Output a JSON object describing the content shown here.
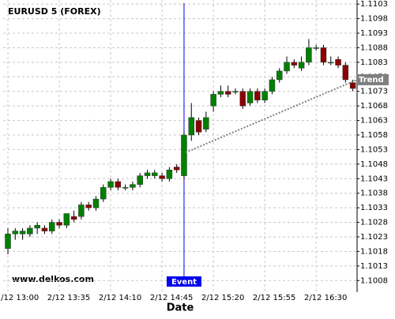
{
  "chart_data": {
    "type": "candlestick",
    "title": "EURUSD 5 (FOREX)",
    "watermark": "www.delkos.com",
    "x_label": "Date",
    "categories": [
      "2/12 13:00",
      null,
      null,
      null,
      null,
      null,
      null,
      "2/12 13:35",
      null,
      null,
      null,
      null,
      null,
      null,
      "2/12 14:10",
      null,
      null,
      null,
      null,
      null,
      null,
      "2/12 14:45",
      null,
      null,
      null,
      null,
      null,
      null,
      "2/12 15:20",
      null,
      null,
      null,
      null,
      null,
      null,
      "2/12 15:55",
      null,
      null,
      null,
      null,
      null,
      null,
      "2/12 16:30",
      null,
      null,
      null,
      null,
      null
    ],
    "open": [
      1.1019,
      1.1024,
      1.1024,
      1.1024,
      1.1026,
      1.1026,
      1.1025,
      1.1028,
      1.1027,
      1.103,
      1.103,
      1.1034,
      1.1033,
      1.1036,
      1.104,
      1.1042,
      1.104,
      1.104,
      1.1041,
      1.1044,
      1.1044,
      1.1044,
      1.1043,
      1.1047,
      1.1044,
      1.1058,
      1.1063,
      1.106,
      1.1068,
      1.1072,
      1.1073,
      1.1073,
      1.1073,
      1.1069,
      1.1073,
      1.107,
      1.1073,
      1.1077,
      1.108,
      1.1083,
      1.1081,
      1.1083,
      1.1088,
      1.1088,
      1.1083,
      1.1084,
      1.1082,
      1.1076
    ],
    "high": [
      1.1026,
      1.1026,
      1.1026,
      1.1027,
      1.1028,
      1.1027,
      1.1029,
      1.1029,
      1.1031,
      1.1032,
      1.1035,
      1.1035,
      1.1037,
      1.1041,
      1.1043,
      1.1043,
      1.1041,
      1.1042,
      1.1045,
      1.1046,
      1.1046,
      1.1045,
      1.1047,
      1.1048,
      1.1059,
      1.1069,
      1.1064,
      1.1066,
      1.1073,
      1.1075,
      1.1075,
      1.1074,
      1.1074,
      1.1074,
      1.1074,
      1.1074,
      1.1078,
      1.1081,
      1.1085,
      1.1084,
      1.1085,
      1.1091,
      1.1089,
      1.1089,
      1.1085,
      1.1085,
      1.1083,
      1.1077
    ],
    "low": [
      1.1017,
      1.1022,
      1.1022,
      1.1023,
      1.1024,
      1.1024,
      1.1024,
      1.1026,
      1.1026,
      1.1028,
      1.1029,
      1.1032,
      1.1032,
      1.1035,
      1.1039,
      1.1039,
      1.1039,
      1.1039,
      1.104,
      1.1043,
      1.1043,
      1.1042,
      1.1042,
      1.1045,
      1.1043,
      1.1056,
      1.1058,
      1.1059,
      1.1066,
      1.1071,
      1.1071,
      1.1072,
      1.1067,
      1.1068,
      1.1069,
      1.1069,
      1.1072,
      1.1076,
      1.1079,
      1.1081,
      1.108,
      1.1082,
      1.1087,
      1.1082,
      1.1082,
      1.1081,
      1.1076,
      1.1073
    ],
    "close": [
      1.1024,
      1.1025,
      1.1025,
      1.1026,
      1.1027,
      1.1025,
      1.1028,
      1.1027,
      1.1031,
      1.1029,
      1.1034,
      1.1033,
      1.1036,
      1.104,
      1.1042,
      1.104,
      1.104,
      1.1041,
      1.1044,
      1.1045,
      1.1045,
      1.1043,
      1.1046,
      1.1046,
      1.1058,
      1.1064,
      1.1059,
      1.1064,
      1.1072,
      1.1073,
      1.1072,
      1.1073,
      1.1068,
      1.1073,
      1.107,
      1.1073,
      1.1077,
      1.108,
      1.1083,
      1.1082,
      1.1083,
      1.1088,
      1.1088,
      1.1083,
      1.1083,
      1.1082,
      1.1077,
      1.1074
    ],
    "up_color": "#008000",
    "down_color": "#8b0000",
    "event": {
      "label": "Event",
      "color": "#0000ee"
    },
    "trend": {
      "label": "Trend",
      "values": [
        1.1052,
        1.1077
      ],
      "color": "#808080"
    },
    "ylim": [
      1.1004,
      1.11044
    ],
    "yticks": [
      1.1008,
      1.1013,
      1.1018,
      1.1023,
      1.1028,
      1.1033,
      1.1038,
      1.1043,
      1.1048,
      1.1053,
      1.1058,
      1.1063,
      1.1068,
      1.1073,
      1.1078,
      1.1083,
      1.1088,
      1.1093,
      1.1098,
      1.1103
    ],
    "grid": true
  }
}
